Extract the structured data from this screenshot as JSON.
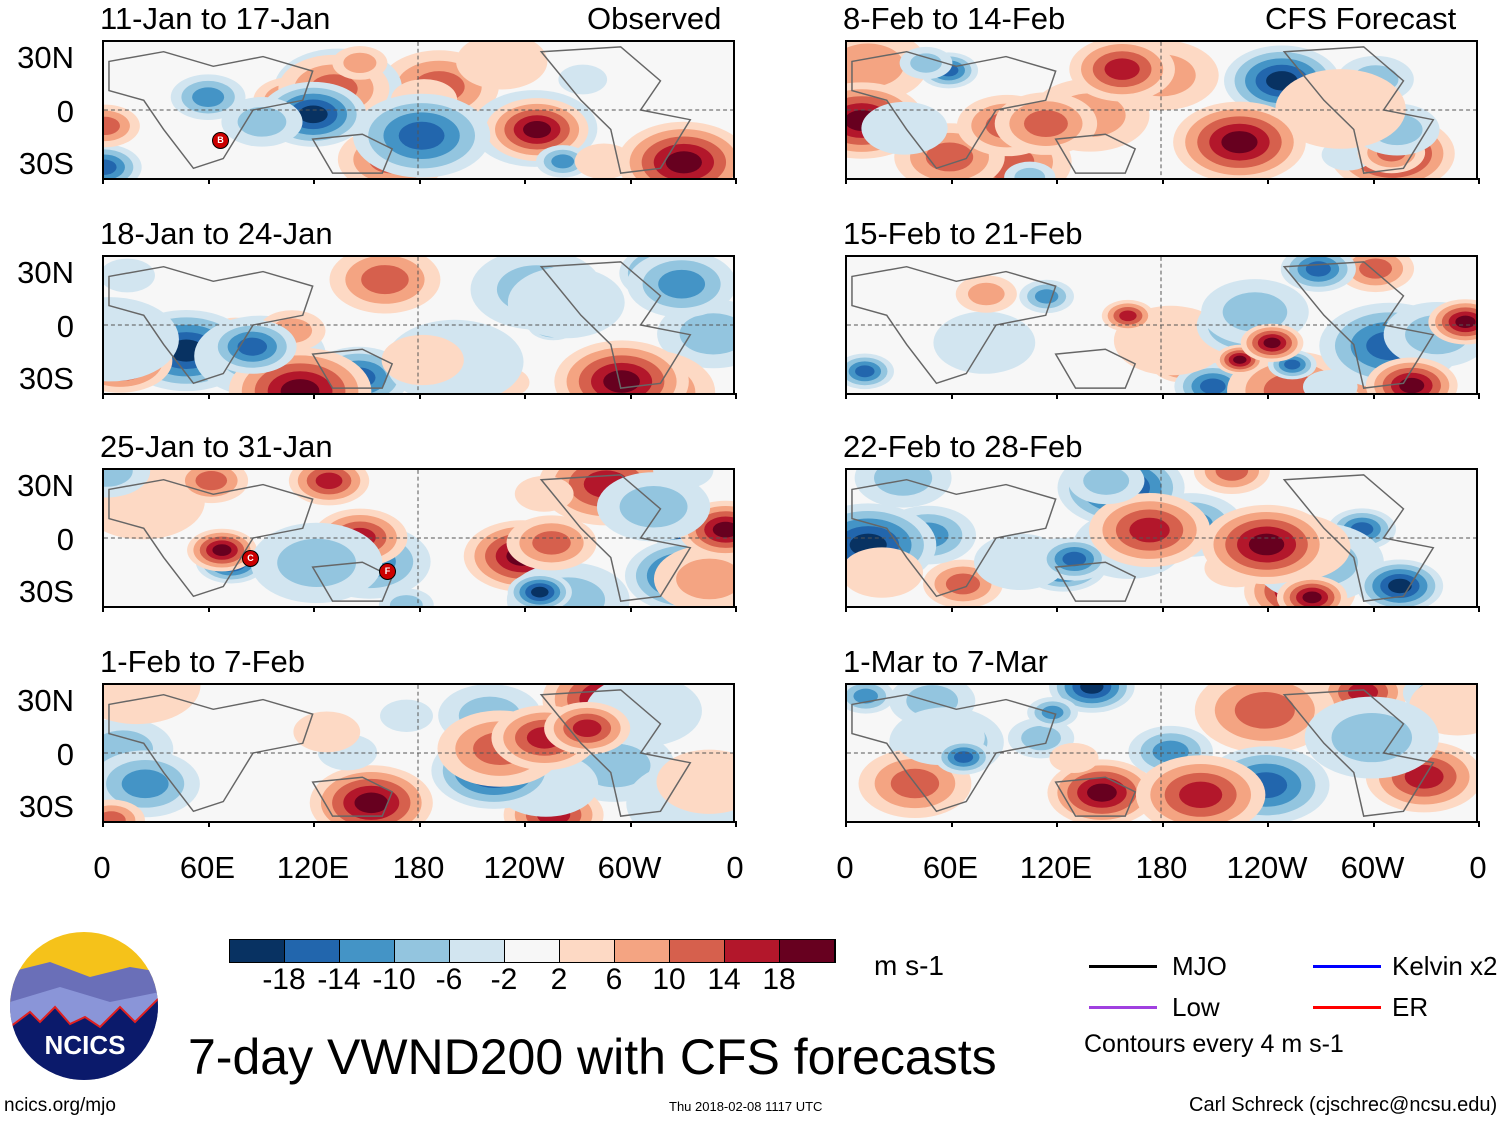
{
  "title": "7-day VWND200 with CFS forecasts",
  "left_header": "Observed",
  "right_header": "CFS Forecast",
  "left_panels": [
    {
      "title": "11-Jan to 17-Jan",
      "storms": [
        "B"
      ]
    },
    {
      "title": "18-Jan to 24-Jan",
      "storms": []
    },
    {
      "title": "25-Jan to 31-Jan",
      "storms": [
        "C",
        "F"
      ]
    },
    {
      "title": "1-Feb to 7-Feb",
      "storms": []
    }
  ],
  "right_panels": [
    {
      "title": "8-Feb to 14-Feb"
    },
    {
      "title": "15-Feb to 21-Feb"
    },
    {
      "title": "22-Feb to 28-Feb"
    },
    {
      "title": "1-Mar to 7-Mar"
    }
  ],
  "lat_labels": [
    "30N",
    "0",
    "30S"
  ],
  "lon_labels": [
    "0",
    "60E",
    "120E",
    "180",
    "120W",
    "60W",
    "0"
  ],
  "colorbar": {
    "colors": [
      "#083262",
      "#2266ad",
      "#4494c6",
      "#93c5df",
      "#d2e5f0",
      "#f7f7f7",
      "#fdd9c4",
      "#f4a482",
      "#d6604d",
      "#b3172b",
      "#67001f"
    ],
    "labels": [
      "-18",
      "-14",
      "-10",
      "-6",
      "-2",
      "2",
      "6",
      "10",
      "14",
      "18"
    ],
    "units": "m s-1"
  },
  "legend": {
    "items": [
      {
        "label": "MJO",
        "color": "#000000"
      },
      {
        "label": "Kelvin x2",
        "color": "#0000ff"
      },
      {
        "label": "Low",
        "color": "#a040e0"
      },
      {
        "label": "ER",
        "color": "#ff0000"
      }
    ],
    "note": "Contours every 4 m s-1"
  },
  "logo": {
    "text": "NCICS"
  },
  "url": "ncics.org/mjo",
  "timestamp": "Thu 2018-02-08 1117 UTC",
  "credit": "Carl Schreck (cjschrec@ncsu.edu)"
}
